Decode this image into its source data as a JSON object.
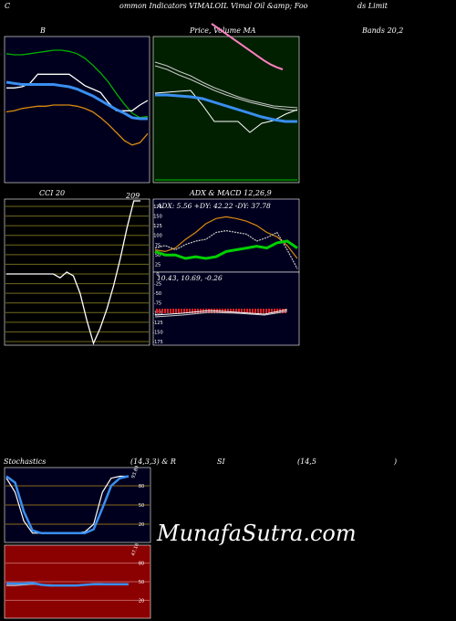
{
  "header": {
    "left": "C",
    "middle": "ommon  Indicators VIMALOIL Vimal Oil &amp; Foo",
    "right": "ds Limit"
  },
  "watermark": "MunafaSutra.com",
  "colors": {
    "bg": "#000000",
    "panel_dark": "#00001e",
    "panel_green": "#002000",
    "panel_red": "#8b0000",
    "blue": "#3a8ef0",
    "white": "#ffffff",
    "green": "#00d000",
    "orange": "#d88a10",
    "pink": "#ff80c0",
    "grid_olive": "#6f6a1e"
  },
  "chart_data": [
    {
      "id": "bollinger",
      "type": "line",
      "title": "B",
      "series": [
        {
          "color": "#00b000",
          "values": [
            62,
            63,
            63,
            62,
            61,
            60,
            59,
            59,
            60,
            62,
            66,
            72,
            79,
            87,
            97,
            106,
            114,
            118,
            117
          ]
        },
        {
          "color": "#ffffff",
          "values": [
            92,
            92,
            91,
            88,
            80,
            80,
            80,
            80,
            80,
            85,
            90,
            93,
            96,
            105,
            112,
            112,
            112,
            107,
            103
          ]
        },
        {
          "color": "#3a8ef0",
          "values": [
            87,
            88,
            89,
            89,
            89,
            89,
            89,
            90,
            91,
            93,
            96,
            99,
            103,
            107,
            111,
            114,
            118,
            119,
            119
          ]
        },
        {
          "color": "#d88a10",
          "values": [
            113,
            112,
            110,
            109,
            108,
            108,
            107,
            107,
            107,
            108,
            110,
            113,
            118,
            124,
            131,
            138,
            142,
            140,
            132
          ]
        }
      ]
    },
    {
      "id": "price_ma",
      "type": "line",
      "title": "Price,  Volume  MA",
      "series": [
        {
          "color": "#c8c8c8",
          "values": [
            68,
            72,
            78,
            83,
            90,
            96,
            101,
            106,
            110,
            113,
            116,
            117,
            118
          ]
        },
        {
          "color": "#c8c8c8",
          "values": [
            72,
            76,
            82,
            87,
            93,
            99,
            104,
            108,
            112,
            115,
            118,
            120,
            121
          ]
        },
        {
          "color": "#ffffff",
          "values": [
            102,
            101,
            100,
            99,
            115,
            133,
            133,
            133,
            145,
            135,
            132,
            125,
            120
          ]
        },
        {
          "color": "#3a8ef0",
          "values": [
            104,
            104,
            105,
            106,
            108,
            112,
            116,
            120,
            124,
            128,
            131,
            133,
            133
          ]
        },
        {
          "color": "#ff80c0",
          "values": [
            12,
            24,
            36,
            48,
            60,
            72,
            84,
            96,
            108,
            120,
            130,
            138,
            144
          ]
        }
      ]
    },
    {
      "id": "cci",
      "type": "line",
      "title": "CCI 20",
      "value_label": "209",
      "ylim": [
        -185,
        209
      ],
      "y_ticks": [
        175,
        150,
        125,
        100,
        75,
        50,
        25,
        0,
        -25,
        -50,
        -75,
        -100,
        -125,
        -150,
        -175
      ],
      "series": [
        {
          "color": "#ffffff",
          "values": [
            0,
            0,
            0,
            0,
            0,
            0,
            0,
            0,
            -10,
            5,
            -5,
            -50,
            -120,
            -185,
            -140,
            -90,
            -30,
            40,
            120,
            190,
            209
          ]
        }
      ]
    },
    {
      "id": "adx_macd",
      "type": "line",
      "title": "ADX  & MACD 12,26,9",
      "adx_label": "ADX: 5.56  +DY: 42.22  -DY: 37.78",
      "macd_label": "10.43,  10.69,  -0.26",
      "series": [
        {
          "color": "#d88a10",
          "values": [
            50,
            52,
            48,
            38,
            30,
            20,
            14,
            12,
            14,
            17,
            22,
            30,
            35,
            45,
            60
          ]
        },
        {
          "color": "#c8c8c8",
          "values": [
            48,
            45,
            50,
            44,
            40,
            38,
            30,
            28,
            30,
            32,
            40,
            36,
            30,
            50,
            72
          ]
        },
        {
          "color": "#00d000",
          "values": [
            52,
            56,
            56,
            60,
            58,
            60,
            58,
            52,
            50,
            48,
            46,
            48,
            42,
            40,
            48
          ]
        }
      ]
    },
    {
      "id": "stochastics",
      "type": "line",
      "title": "Stochastics",
      "params": "(14,3,3) & R",
      "y_ticks": [
        80,
        50,
        20
      ],
      "value_label": "93.89",
      "series": [
        {
          "color": "#ffffff",
          "values": [
            92,
            70,
            25,
            6,
            6,
            6,
            6,
            6,
            6,
            8,
            20,
            70,
            92,
            95,
            95
          ]
        },
        {
          "color": "#3a8ef0",
          "values": [
            95,
            85,
            40,
            10,
            6,
            6,
            6,
            6,
            6,
            6,
            12,
            45,
            80,
            92,
            95
          ]
        }
      ]
    },
    {
      "id": "rsi",
      "type": "line",
      "title": "SI",
      "params": "(14,5",
      "close_paren": ")",
      "y_ticks": [
        80,
        50,
        20
      ],
      "value_label": "47.16",
      "series": [
        {
          "color": "#c8c8c8",
          "values": [
            44,
            44,
            45,
            46,
            45,
            45,
            44,
            44,
            44,
            45,
            47,
            47,
            46,
            46,
            46
          ]
        },
        {
          "color": "#3a8ef0",
          "values": [
            47,
            47,
            47,
            48,
            45,
            44,
            44,
            44,
            44,
            45,
            46,
            46,
            46,
            46,
            46
          ]
        }
      ]
    }
  ]
}
